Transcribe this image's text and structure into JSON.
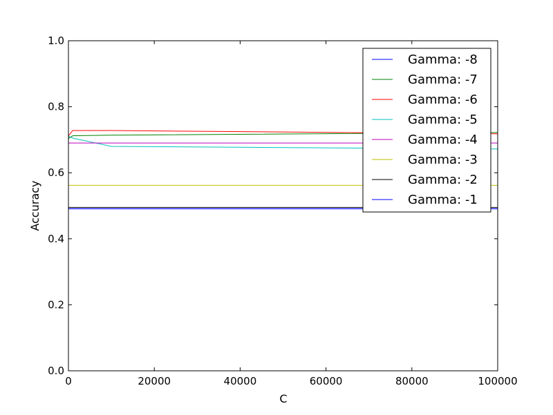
{
  "chart_data": {
    "type": "line",
    "title": "",
    "xlabel": "C",
    "ylabel": "Accuracy",
    "xlim": [
      0,
      100000
    ],
    "ylim": [
      0.0,
      1.0
    ],
    "x_ticks": [
      0,
      20000,
      40000,
      60000,
      80000,
      100000
    ],
    "x_tick_labels": [
      "0",
      "20000",
      "40000",
      "60000",
      "80000",
      "100000"
    ],
    "y_ticks": [
      0.0,
      0.2,
      0.4,
      0.6,
      0.8,
      1.0
    ],
    "y_tick_labels": [
      "0.0",
      "0.2",
      "0.4",
      "0.6",
      "0.8",
      "1.0"
    ],
    "grid": false,
    "legend_position": "top-right",
    "x": [
      1,
      10,
      100,
      1000,
      10000,
      100000
    ],
    "series": [
      {
        "name": "Gamma: -8",
        "color": "#0000ff",
        "values": [
          0.491,
          0.491,
          0.491,
          0.491,
          0.491,
          0.491
        ]
      },
      {
        "name": "Gamma: -7",
        "color": "#008000",
        "values": [
          0.7,
          0.7,
          0.705,
          0.712,
          0.714,
          0.722
        ]
      },
      {
        "name": "Gamma: -6",
        "color": "#ff0000",
        "values": [
          0.707,
          0.707,
          0.714,
          0.728,
          0.728,
          0.718
        ]
      },
      {
        "name": "Gamma: -5",
        "color": "#00bfbf",
        "values": [
          0.711,
          0.711,
          0.71,
          0.705,
          0.68,
          0.672
        ]
      },
      {
        "name": "Gamma: -4",
        "color": "#bf00bf",
        "values": [
          0.69,
          0.69,
          0.69,
          0.69,
          0.69,
          0.69
        ]
      },
      {
        "name": "Gamma: -3",
        "color": "#bfbf00",
        "values": [
          0.562,
          0.562,
          0.562,
          0.562,
          0.562,
          0.562
        ]
      },
      {
        "name": "Gamma: -2",
        "color": "#000000",
        "values": [
          0.495,
          0.495,
          0.495,
          0.495,
          0.495,
          0.495
        ]
      },
      {
        "name": "Gamma: -1",
        "color": "#0000ff",
        "values": [
          0.491,
          0.491,
          0.491,
          0.491,
          0.491,
          0.491
        ]
      }
    ]
  }
}
